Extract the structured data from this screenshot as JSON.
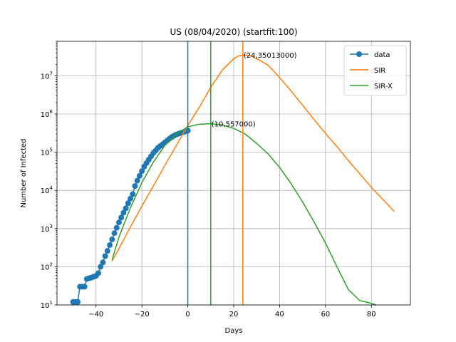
{
  "chart_data": {
    "type": "line",
    "title": "US (08/04/2020) (startfit:100)",
    "xlabel": "Days",
    "ylabel": "Number of Infected",
    "xlim": [
      -57,
      97
    ],
    "xticks": [
      -40,
      -20,
      0,
      20,
      40,
      60,
      80
    ],
    "xtick_labels": [
      "−40",
      "−20",
      "0",
      "20",
      "40",
      "60",
      "80"
    ],
    "ylim": [
      10,
      80000000
    ],
    "yscale": "log",
    "yticks": [
      10,
      100,
      1000,
      10000,
      100000,
      1000000,
      10000000
    ],
    "ytick_exponents": [
      "1",
      "2",
      "3",
      "4",
      "5",
      "6",
      "7"
    ],
    "ytick_base": "10",
    "grid": true,
    "legend_position": "top-right",
    "series": [
      {
        "name": "data",
        "color": "#1f77b4",
        "marker": "circle",
        "x": [
          -50,
          -49,
          -48,
          -47,
          -46,
          -45,
          -44,
          -43,
          -42,
          -41,
          -40,
          -39,
          -38,
          -37,
          -36,
          -35,
          -34,
          -33,
          -32,
          -31,
          -30,
          -29,
          -28,
          -27,
          -26,
          -25,
          -24,
          -23,
          -22,
          -21,
          -20,
          -19,
          -18,
          -17,
          -16,
          -15,
          -14,
          -13,
          -12,
          -11,
          -10,
          -9,
          -8,
          -7,
          -6,
          -5,
          -4,
          -3,
          -2,
          -1,
          0
        ],
        "y": [
          12,
          12,
          12,
          30,
          30,
          30,
          48,
          50,
          52,
          55,
          58,
          68,
          100,
          130,
          190,
          260,
          370,
          520,
          760,
          1050,
          1450,
          1950,
          2600,
          3400,
          4600,
          6100,
          8000,
          13000,
          18000,
          24000,
          32000,
          42000,
          52000,
          64000,
          78000,
          95000,
          110000,
          130000,
          145000,
          160000,
          180000,
          200000,
          225000,
          250000,
          270000,
          290000,
          305000,
          320000,
          335000,
          350000,
          367000
        ]
      },
      {
        "name": "SIR",
        "color": "#ff7f0e",
        "x": [
          -33,
          -30,
          -25,
          -20,
          -15,
          -10,
          -5,
          0,
          5,
          10,
          15,
          20,
          22,
          24,
          26,
          28,
          30,
          35,
          40,
          45,
          50,
          55,
          60,
          65,
          70,
          75,
          80,
          85,
          90
        ],
        "y": [
          140,
          300,
          1100,
          3900,
          13000,
          45000,
          150000,
          500000,
          1500000,
          5000000,
          14000000,
          28000000,
          33000000,
          35013000,
          34500000,
          32000000,
          28000000,
          19000000,
          9000000,
          4000000,
          1700000,
          720000,
          310000,
          140000,
          60000,
          27000,
          12000,
          5800,
          2800
        ]
      },
      {
        "name": "SIR-X",
        "color": "#2ca02c",
        "x": [
          -33,
          -30,
          -25,
          -20,
          -15,
          -10,
          -5,
          0,
          5,
          10,
          15,
          20,
          25,
          30,
          35,
          40,
          45,
          50,
          55,
          60,
          65,
          70,
          75,
          80,
          82
        ],
        "y": [
          150,
          600,
          3500,
          16000,
          55000,
          150000,
          300000,
          460000,
          540000,
          557000,
          520000,
          420000,
          300000,
          170000,
          90000,
          40000,
          15000,
          5000,
          1500,
          420,
          100,
          25,
          13,
          11,
          10
        ]
      }
    ],
    "vlines": [
      {
        "x": 0,
        "color": "#1f77b4"
      },
      {
        "x": 10,
        "color": "#2ca02c"
      },
      {
        "x": 24,
        "color": "#ff7f0e"
      }
    ],
    "annotations": [
      {
        "text": "(24,35013000)",
        "x": 24,
        "y": 35013000
      },
      {
        "text": "(10,557000)",
        "x": 10,
        "y": 557000
      }
    ]
  }
}
